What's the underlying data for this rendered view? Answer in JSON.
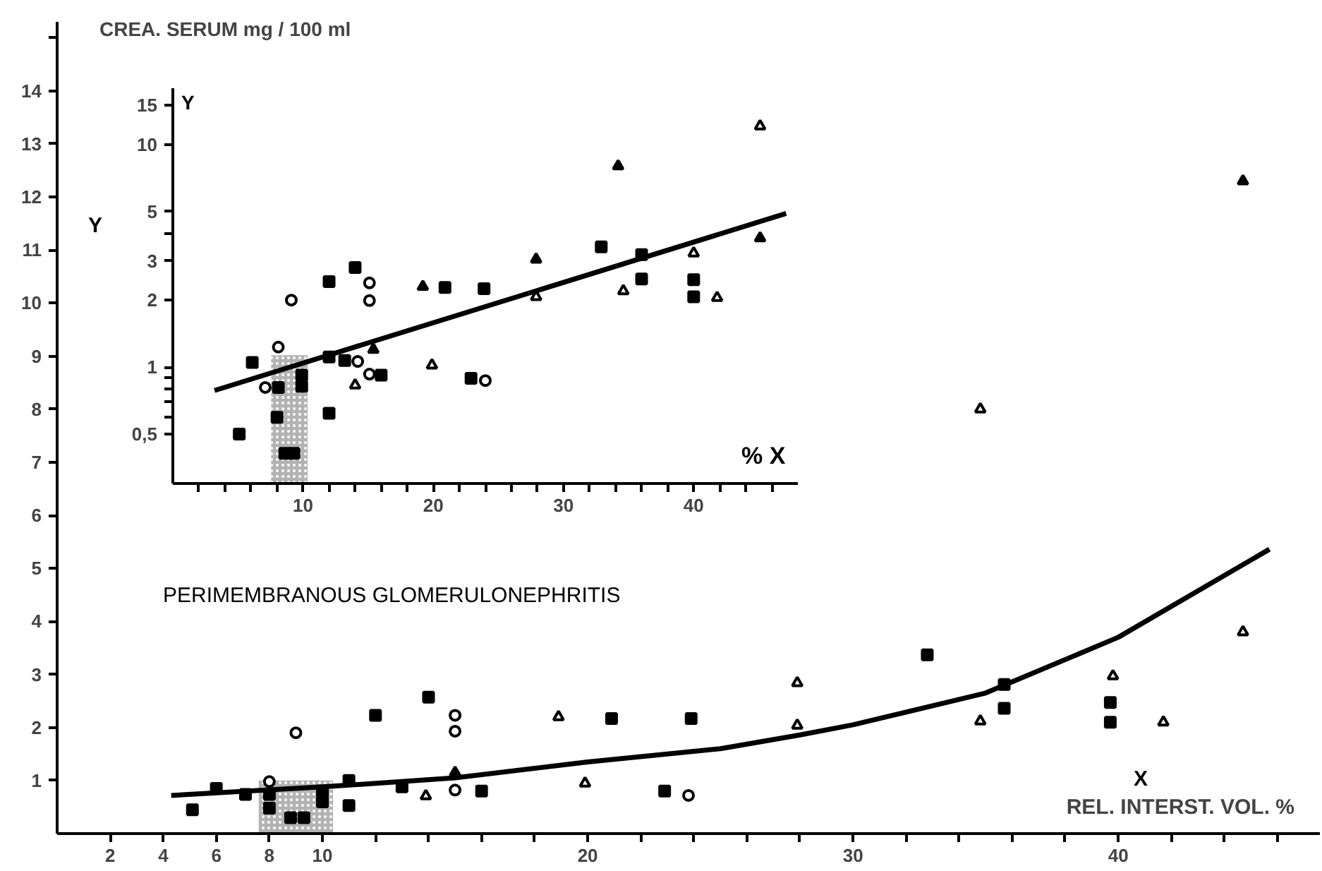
{
  "chart_data": [
    {
      "type": "scatter",
      "ylabel": "CREA. SERUM mg / 100 ml",
      "xlabel": "REL. INTERST. VOL. %",
      "annotations": [
        "Y",
        "X",
        "PERIMEMBRANOUS GLOMERULONEPHRITIS"
      ],
      "xlim": [
        0,
        47.6
      ],
      "xticks": [
        2,
        4,
        6,
        8,
        10,
        {
          "value": 12,
          "label": null
        },
        {
          "value": 14,
          "label": null
        },
        {
          "value": 16,
          "label": null
        },
        {
          "value": 18,
          "label": null
        },
        20,
        {
          "value": 22,
          "label": null
        },
        {
          "value": 24,
          "label": null
        },
        {
          "value": 26,
          "label": null
        },
        {
          "value": 28,
          "label": null
        },
        30,
        {
          "value": 32,
          "label": null
        },
        {
          "value": 34,
          "label": null
        },
        {
          "value": 36,
          "label": null
        },
        {
          "value": 38,
          "label": null
        },
        40,
        {
          "value": 42,
          "label": null
        },
        {
          "value": 44,
          "label": null
        },
        {
          "value": 46,
          "label": null
        }
      ],
      "ylim": [
        0,
        15.3
      ],
      "yticks": [
        1,
        2,
        3,
        4,
        5,
        6,
        7,
        8,
        9,
        10,
        11,
        12,
        13,
        14,
        {
          "value": 15,
          "label": null
        }
      ],
      "series": [
        {
          "type": "bar",
          "x": [
            9
          ],
          "values": [
            1
          ],
          "color": "#a0a0a0"
        },
        {
          "marker": "square",
          "color": "#000000",
          "x": [
            5.1,
            6.0,
            7.1,
            8.0,
            8.0,
            8.8,
            9.3,
            10.0,
            10.0,
            11.0,
            11.0,
            12.0,
            13.0,
            14.0,
            16.0,
            20.9,
            22.9,
            23.9,
            32.8,
            35.7,
            35.7,
            39.7,
            39.7
          ],
          "values": [
            0.45,
            0.85,
            0.74,
            0.74,
            0.48,
            0.3,
            0.3,
            0.8,
            0.6,
            1.0,
            0.53,
            2.23,
            0.88,
            2.57,
            0.8,
            2.17,
            0.8,
            2.17,
            3.37,
            2.81,
            2.36,
            2.47,
            2.1
          ]
        },
        {
          "marker": "circle",
          "color": "#ffffff",
          "x": [
            8.0,
            9.0,
            15.0,
            15.0,
            15.0,
            23.8
          ],
          "values": [
            0.98,
            1.9,
            2.23,
            1.93,
            0.82,
            0.72
          ]
        },
        {
          "marker": "triangle",
          "color": "#000000",
          "x": [
            15.0,
            44.7
          ],
          "values": [
            1.15,
            12.3
          ]
        },
        {
          "marker": "triangle",
          "color": "#ffffff",
          "x": [
            13.9,
            18.9,
            19.9,
            27.9,
            27.9,
            34.8,
            34.8,
            39.8,
            41.7,
            44.7
          ],
          "values": [
            0.71,
            2.2,
            0.95,
            2.84,
            2.04,
            8.0,
            2.12,
            2.97,
            2.1,
            3.8
          ]
        },
        {
          "type": "line",
          "color": "#000000",
          "x": [
            4.3,
            10,
            15,
            20,
            25,
            28,
            30,
            35,
            40,
            45.7
          ],
          "values": [
            0.72,
            0.88,
            1.05,
            1.35,
            1.6,
            1.86,
            2.05,
            2.65,
            3.7,
            5.36
          ]
        }
      ]
    },
    {
      "type": "scatter",
      "log": true,
      "annotations": [
        "Y",
        "% X"
      ],
      "xlim": [
        0,
        48
      ],
      "xticks": [
        {
          "value": 2,
          "label": null
        },
        {
          "value": 4,
          "label": null
        },
        {
          "value": 6,
          "label": null
        },
        {
          "value": 8,
          "label": null
        },
        10,
        {
          "value": 12,
          "label": null
        },
        {
          "value": 14,
          "label": null
        },
        {
          "value": 16,
          "label": null
        },
        {
          "value": 18,
          "label": null
        },
        20,
        {
          "value": 22,
          "label": null
        },
        {
          "value": 24,
          "label": null
        },
        {
          "value": 26,
          "label": null
        },
        {
          "value": 28,
          "label": null
        },
        30,
        {
          "value": 32,
          "label": null
        },
        {
          "value": 34,
          "label": null
        },
        {
          "value": 36,
          "label": null
        },
        {
          "value": 38,
          "label": null
        },
        40,
        {
          "value": 42,
          "label": null
        },
        {
          "value": 44,
          "label": null
        },
        {
          "value": 46,
          "label": null
        }
      ],
      "ylim": [
        0.3,
        17.9
      ],
      "yticks": [
        {
          "value": 0.5,
          "label": "0,5"
        },
        {
          "value": 0.6,
          "label": null
        },
        {
          "value": 0.7,
          "label": null
        },
        {
          "value": 0.8,
          "label": null
        },
        {
          "value": 0.9,
          "label": null
        },
        1,
        2,
        3,
        {
          "value": 4,
          "label": null
        },
        5,
        10,
        15
      ],
      "series": [
        {
          "type": "bar",
          "x": [
            8.95
          ],
          "values": [
            1.13
          ],
          "color": "#a0a0a0"
        },
        {
          "marker": "square",
          "color": "#000000",
          "x": [
            5.1,
            6.1,
            8.1,
            8.0,
            8.6,
            9.3,
            9.9,
            9.9,
            12.0,
            12.0,
            12.0,
            13.2,
            14.0,
            16.0,
            20.9,
            22.9,
            23.9,
            32.9,
            36.0,
            36.0,
            40.0,
            40.0
          ],
          "values": [
            0.5,
            1.05,
            0.81,
            0.595,
            0.41,
            0.41,
            0.92,
            0.82,
            2.42,
            1.11,
            0.62,
            1.07,
            2.8,
            0.92,
            2.28,
            0.89,
            2.25,
            3.47,
            3.2,
            2.49,
            2.47,
            2.07
          ]
        },
        {
          "marker": "circle",
          "color": "#ffffff",
          "x": [
            7.1,
            8.1,
            9.1,
            14.2,
            15.1,
            15.1,
            15.1,
            24.0
          ],
          "values": [
            0.81,
            1.23,
            2.0,
            1.06,
            2.39,
            1.99,
            0.93,
            0.87
          ]
        },
        {
          "marker": "triangle",
          "color": "#000000",
          "x": [
            15.4,
            19.2,
            27.9,
            34.2,
            45.1
          ],
          "values": [
            1.2,
            2.3,
            3.05,
            8.0,
            3.8
          ]
        },
        {
          "marker": "triangle",
          "color": "#ffffff",
          "x": [
            14.0,
            19.9,
            27.9,
            34.6,
            40.0,
            41.8,
            45.1
          ],
          "values": [
            0.83,
            1.02,
            2.07,
            2.2,
            3.25,
            2.05,
            12.1
          ]
        },
        {
          "type": "line",
          "color": "#000000",
          "x": [
            3.2,
            47.1
          ],
          "values": [
            0.785,
            4.9
          ]
        }
      ]
    }
  ]
}
